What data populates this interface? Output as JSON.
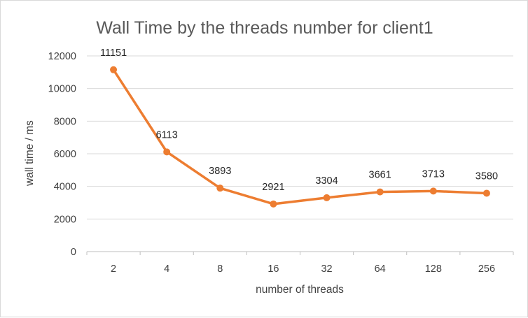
{
  "chart_data": {
    "type": "line",
    "title": "Wall Time by the threads number for client1",
    "xlabel": "number of threads",
    "ylabel": "wall time / ms",
    "categories": [
      "2",
      "4",
      "8",
      "16",
      "32",
      "64",
      "128",
      "256"
    ],
    "series": [
      {
        "name": "wall time",
        "values": [
          11151,
          6113,
          3893,
          2921,
          3304,
          3661,
          3713,
          3580
        ],
        "color": "#ed7d31"
      }
    ],
    "ylim": [
      0,
      12000
    ],
    "yticks": [
      0,
      2000,
      4000,
      6000,
      8000,
      10000,
      12000
    ],
    "grid": true,
    "legend": "none"
  }
}
